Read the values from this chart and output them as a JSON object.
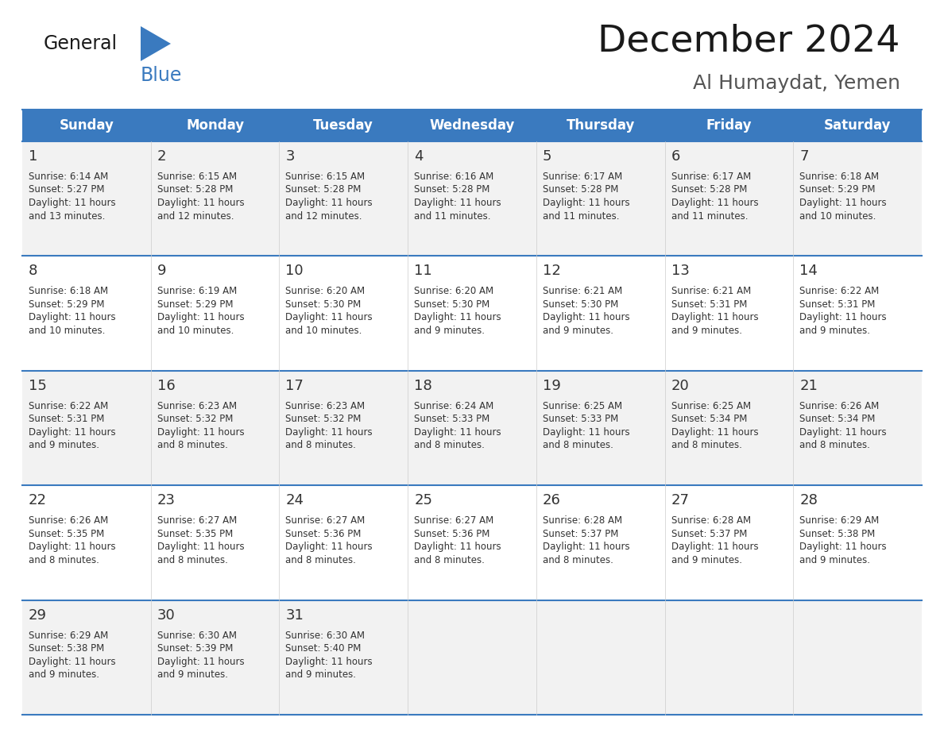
{
  "title": "December 2024",
  "subtitle": "Al Humaydat, Yemen",
  "days_of_week": [
    "Sunday",
    "Monday",
    "Tuesday",
    "Wednesday",
    "Thursday",
    "Friday",
    "Saturday"
  ],
  "header_bg": "#3a7abf",
  "header_text_color": "#ffffff",
  "row_bg_odd": "#f2f2f2",
  "row_bg_even": "#ffffff",
  "cell_text_color": "#333333",
  "separator_color": "#3a7abf",
  "calendar_data": [
    [
      {
        "day": 1,
        "sunrise": "6:14 AM",
        "sunset": "5:27 PM",
        "daylight_hours": 11,
        "daylight_minutes": 13
      },
      {
        "day": 2,
        "sunrise": "6:15 AM",
        "sunset": "5:28 PM",
        "daylight_hours": 11,
        "daylight_minutes": 12
      },
      {
        "day": 3,
        "sunrise": "6:15 AM",
        "sunset": "5:28 PM",
        "daylight_hours": 11,
        "daylight_minutes": 12
      },
      {
        "day": 4,
        "sunrise": "6:16 AM",
        "sunset": "5:28 PM",
        "daylight_hours": 11,
        "daylight_minutes": 11
      },
      {
        "day": 5,
        "sunrise": "6:17 AM",
        "sunset": "5:28 PM",
        "daylight_hours": 11,
        "daylight_minutes": 11
      },
      {
        "day": 6,
        "sunrise": "6:17 AM",
        "sunset": "5:28 PM",
        "daylight_hours": 11,
        "daylight_minutes": 11
      },
      {
        "day": 7,
        "sunrise": "6:18 AM",
        "sunset": "5:29 PM",
        "daylight_hours": 11,
        "daylight_minutes": 10
      }
    ],
    [
      {
        "day": 8,
        "sunrise": "6:18 AM",
        "sunset": "5:29 PM",
        "daylight_hours": 11,
        "daylight_minutes": 10
      },
      {
        "day": 9,
        "sunrise": "6:19 AM",
        "sunset": "5:29 PM",
        "daylight_hours": 11,
        "daylight_minutes": 10
      },
      {
        "day": 10,
        "sunrise": "6:20 AM",
        "sunset": "5:30 PM",
        "daylight_hours": 11,
        "daylight_minutes": 10
      },
      {
        "day": 11,
        "sunrise": "6:20 AM",
        "sunset": "5:30 PM",
        "daylight_hours": 11,
        "daylight_minutes": 9
      },
      {
        "day": 12,
        "sunrise": "6:21 AM",
        "sunset": "5:30 PM",
        "daylight_hours": 11,
        "daylight_minutes": 9
      },
      {
        "day": 13,
        "sunrise": "6:21 AM",
        "sunset": "5:31 PM",
        "daylight_hours": 11,
        "daylight_minutes": 9
      },
      {
        "day": 14,
        "sunrise": "6:22 AM",
        "sunset": "5:31 PM",
        "daylight_hours": 11,
        "daylight_minutes": 9
      }
    ],
    [
      {
        "day": 15,
        "sunrise": "6:22 AM",
        "sunset": "5:31 PM",
        "daylight_hours": 11,
        "daylight_minutes": 9
      },
      {
        "day": 16,
        "sunrise": "6:23 AM",
        "sunset": "5:32 PM",
        "daylight_hours": 11,
        "daylight_minutes": 8
      },
      {
        "day": 17,
        "sunrise": "6:23 AM",
        "sunset": "5:32 PM",
        "daylight_hours": 11,
        "daylight_minutes": 8
      },
      {
        "day": 18,
        "sunrise": "6:24 AM",
        "sunset": "5:33 PM",
        "daylight_hours": 11,
        "daylight_minutes": 8
      },
      {
        "day": 19,
        "sunrise": "6:25 AM",
        "sunset": "5:33 PM",
        "daylight_hours": 11,
        "daylight_minutes": 8
      },
      {
        "day": 20,
        "sunrise": "6:25 AM",
        "sunset": "5:34 PM",
        "daylight_hours": 11,
        "daylight_minutes": 8
      },
      {
        "day": 21,
        "sunrise": "6:26 AM",
        "sunset": "5:34 PM",
        "daylight_hours": 11,
        "daylight_minutes": 8
      }
    ],
    [
      {
        "day": 22,
        "sunrise": "6:26 AM",
        "sunset": "5:35 PM",
        "daylight_hours": 11,
        "daylight_minutes": 8
      },
      {
        "day": 23,
        "sunrise": "6:27 AM",
        "sunset": "5:35 PM",
        "daylight_hours": 11,
        "daylight_minutes": 8
      },
      {
        "day": 24,
        "sunrise": "6:27 AM",
        "sunset": "5:36 PM",
        "daylight_hours": 11,
        "daylight_minutes": 8
      },
      {
        "day": 25,
        "sunrise": "6:27 AM",
        "sunset": "5:36 PM",
        "daylight_hours": 11,
        "daylight_minutes": 8
      },
      {
        "day": 26,
        "sunrise": "6:28 AM",
        "sunset": "5:37 PM",
        "daylight_hours": 11,
        "daylight_minutes": 8
      },
      {
        "day": 27,
        "sunrise": "6:28 AM",
        "sunset": "5:37 PM",
        "daylight_hours": 11,
        "daylight_minutes": 9
      },
      {
        "day": 28,
        "sunrise": "6:29 AM",
        "sunset": "5:38 PM",
        "daylight_hours": 11,
        "daylight_minutes": 9
      }
    ],
    [
      {
        "day": 29,
        "sunrise": "6:29 AM",
        "sunset": "5:38 PM",
        "daylight_hours": 11,
        "daylight_minutes": 9
      },
      {
        "day": 30,
        "sunrise": "6:30 AM",
        "sunset": "5:39 PM",
        "daylight_hours": 11,
        "daylight_minutes": 9
      },
      {
        "day": 31,
        "sunrise": "6:30 AM",
        "sunset": "5:40 PM",
        "daylight_hours": 11,
        "daylight_minutes": 9
      },
      null,
      null,
      null,
      null
    ]
  ],
  "logo_text_general": "General",
  "logo_text_blue": "Blue",
  "logo_triangle_color": "#3a7abf",
  "general_color": "#1a1a1a",
  "blue_color": "#3a7abf",
  "fig_width": 11.88,
  "fig_height": 9.18,
  "dpi": 100
}
